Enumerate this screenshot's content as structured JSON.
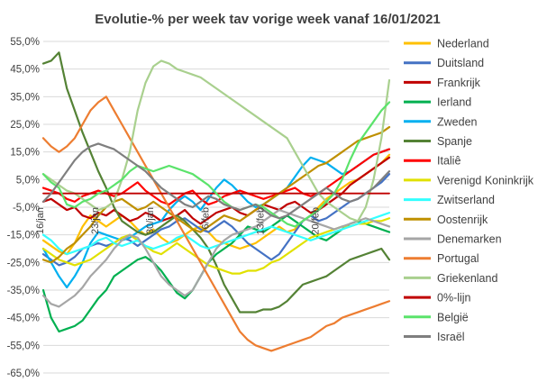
{
  "chart_data": {
    "type": "line",
    "title": "Evolutie-% per week tav vorige week vanaf 16/01/2021",
    "xlabel": "",
    "ylabel": "",
    "ylim": [
      -65,
      55
    ],
    "y_ticks": [
      "55,0%",
      "45,0%",
      "35,0%",
      "25,0%",
      "15,0%",
      "5,0%",
      "-5,0%",
      "-15,0%",
      "-25,0%",
      "-35,0%",
      "-45,0%",
      "-55,0%",
      "-65,0%"
    ],
    "y_tick_values": [
      55,
      45,
      35,
      25,
      15,
      5,
      -5,
      -15,
      -25,
      -35,
      -45,
      -55,
      -65
    ],
    "x_tick_labels": [
      "16/jan",
      "23/jan",
      "30/jan",
      "6/feb",
      "13/feb",
      "20/feb"
    ],
    "x_tick_days": [
      0,
      7,
      14,
      21,
      28,
      35
    ],
    "x_range_days": [
      0,
      44
    ],
    "grid": true,
    "legend_position": "right",
    "series": [
      {
        "name": "Nederland",
        "color": "#FFC000",
        "values": [
          -17,
          -19,
          -21,
          -22,
          -18,
          -12,
          -8,
          -10,
          -12,
          -10,
          -8,
          -10,
          -13,
          -15,
          -13,
          -16,
          -18,
          -17,
          -15,
          -13,
          -12,
          -14,
          -17,
          -18,
          -19,
          -20,
          -19,
          -18,
          -16,
          -14,
          -12,
          -14,
          -13,
          -10,
          -8,
          -5,
          -2,
          0,
          2,
          4,
          5,
          7,
          9,
          11,
          14
        ]
      },
      {
        "name": "Duitsland",
        "color": "#4472C4",
        "values": [
          -22,
          -24,
          -26,
          -25,
          -23,
          -20,
          -19,
          -18,
          -19,
          -18,
          -16,
          -17,
          -19,
          -17,
          -15,
          -13,
          -12,
          -10,
          -9,
          -11,
          -13,
          -14,
          -12,
          -10,
          -12,
          -15,
          -18,
          -20,
          -22,
          -24,
          -22,
          -18,
          -14,
          -10,
          -8,
          -10,
          -9,
          -7,
          -5,
          -3,
          -2,
          0,
          2,
          4,
          7
        ]
      },
      {
        "name": "Frankrijk",
        "color": "#C00000",
        "values": [
          -3,
          -2,
          -4,
          -6,
          -5,
          -8,
          -9,
          -7,
          -8,
          -6,
          -8,
          -10,
          -9,
          -7,
          -8,
          -10,
          -9,
          -8,
          -6,
          -9,
          -11,
          -9,
          -7,
          -6,
          -5,
          -7,
          -8,
          -6,
          -4,
          -5,
          -6,
          -4,
          -3,
          -5,
          -7,
          -6,
          -4,
          -2,
          0,
          3,
          5,
          7,
          9,
          11,
          13
        ]
      },
      {
        "name": "Ierland",
        "color": "#00B050",
        "values": [
          -35,
          -45,
          -50,
          -49,
          -48,
          -46,
          -42,
          -38,
          -35,
          -30,
          -28,
          -26,
          -24,
          -23,
          -25,
          -28,
          -32,
          -36,
          -38,
          -35,
          -30,
          -25,
          -22,
          -20,
          -18,
          -15,
          -12,
          -13,
          -14,
          -12,
          -10,
          -8,
          -10,
          -12,
          -14,
          -16,
          -17,
          -15,
          -13,
          -11,
          -10,
          -11,
          -12,
          -13,
          -14
        ]
      },
      {
        "name": "Zweden",
        "color": "#00B0F0",
        "values": [
          -20,
          -25,
          -30,
          -34,
          -30,
          -25,
          -18,
          -14,
          -15,
          -16,
          -17,
          -16,
          -14,
          -12,
          -11,
          -10,
          -6,
          -3,
          -1,
          -3,
          -6,
          -2,
          2,
          5,
          3,
          0,
          -3,
          -5,
          -4,
          -2,
          0,
          2,
          6,
          10,
          13,
          12,
          11,
          9,
          7,
          8,
          10,
          12,
          14,
          15,
          16
        ]
      },
      {
        "name": "Spanje",
        "color": "#548235",
        "values": [
          47,
          48,
          51,
          38,
          30,
          22,
          15,
          8,
          2,
          -5,
          -10,
          -12,
          -14,
          -15,
          -14,
          -12,
          -10,
          -8,
          -10,
          -13,
          -16,
          -20,
          -26,
          -33,
          -38,
          -43,
          -43,
          -43,
          -42,
          -42,
          -41,
          -39,
          -36,
          -33,
          -32,
          -31,
          -30,
          -28,
          -26,
          -24,
          -23,
          -22,
          -21,
          -20,
          -24
        ]
      },
      {
        "name": "Italiê",
        "color": "#FF0000",
        "values": [
          2,
          1,
          0,
          -2,
          -3,
          -1,
          0,
          1,
          0,
          -1,
          0,
          2,
          4,
          1,
          -1,
          -3,
          -4,
          -2,
          0,
          1,
          -2,
          -4,
          -3,
          -1,
          0,
          1,
          0,
          -1,
          -2,
          -1,
          0,
          1,
          2,
          0,
          -1,
          0,
          2,
          4,
          6,
          8,
          10,
          12,
          14,
          15,
          16
        ]
      },
      {
        "name": "Verenigd Koninkrijk",
        "color": "#E1E100",
        "values": [
          -20,
          -22,
          -24,
          -25,
          -26,
          -25,
          -24,
          -22,
          -20,
          -18,
          -16,
          -15,
          -17,
          -19,
          -21,
          -22,
          -20,
          -18,
          -20,
          -22,
          -24,
          -26,
          -27,
          -28,
          -29,
          -29,
          -28,
          -28,
          -27,
          -25,
          -24,
          -22,
          -20,
          -18,
          -16,
          -15,
          -14,
          -13,
          -12,
          -12,
          -11,
          -11,
          -10,
          -10,
          -9
        ]
      },
      {
        "name": "Zwitserland",
        "color": "#33FFFF",
        "values": [
          -15,
          -17,
          -20,
          -22,
          -21,
          -20,
          -19,
          -17,
          -16,
          -18,
          -19,
          -18,
          -17,
          -19,
          -20,
          -19,
          -18,
          -16,
          -15,
          -17,
          -19,
          -20,
          -19,
          -18,
          -17,
          -16,
          -15,
          -14,
          -13,
          -12,
          -13,
          -14,
          -15,
          -16,
          -17,
          -16,
          -15,
          -14,
          -13,
          -12,
          -11,
          -10,
          -9,
          -8,
          -7
        ]
      },
      {
        "name": "Oostenrijk",
        "color": "#BF9000",
        "values": [
          -24,
          -25,
          -23,
          -20,
          -18,
          -15,
          -12,
          -8,
          -5,
          -3,
          -2,
          -4,
          -6,
          -5,
          -3,
          -5,
          -7,
          -9,
          -11,
          -13,
          -14,
          -12,
          -10,
          -8,
          -9,
          -10,
          -8,
          -6,
          -4,
          -2,
          0,
          2,
          4,
          6,
          8,
          10,
          11,
          13,
          15,
          17,
          19,
          20,
          21,
          22,
          24
        ]
      },
      {
        "name": "Denemarken",
        "color": "#A6A6A6",
        "values": [
          -37,
          -40,
          -41,
          -39,
          -37,
          -34,
          -30,
          -27,
          -24,
          -20,
          -17,
          -15,
          -16,
          -20,
          -25,
          -30,
          -33,
          -35,
          -37,
          -35,
          -30,
          -25,
          -20,
          -17,
          -15,
          -14,
          -13,
          -12,
          -10,
          -8,
          -6,
          -7,
          -8,
          -9,
          -10,
          -11,
          -12,
          -13,
          -12,
          -11,
          -10,
          -9,
          -10,
          -11,
          -12
        ]
      },
      {
        "name": "Portugal",
        "color": "#ED7D31",
        "values": [
          20,
          17,
          15,
          17,
          20,
          25,
          30,
          33,
          35,
          30,
          25,
          20,
          15,
          10,
          5,
          0,
          -5,
          -10,
          -15,
          -20,
          -25,
          -30,
          -35,
          -40,
          -45,
          -50,
          -53,
          -55,
          -56,
          -57,
          -56,
          -55,
          -54,
          -53,
          -52,
          -50,
          -48,
          -47,
          -45,
          -44,
          -43,
          -42,
          -41,
          -40,
          -39
        ]
      },
      {
        "name": "Griekenland",
        "color": "#A9D08E",
        "values": [
          7,
          5,
          3,
          1,
          0,
          -2,
          -4,
          -6,
          -5,
          -3,
          5,
          15,
          30,
          40,
          46,
          48,
          47,
          45,
          44,
          43,
          42,
          40,
          38,
          36,
          34,
          32,
          30,
          28,
          26,
          24,
          22,
          20,
          15,
          10,
          5,
          0,
          -3,
          -5,
          -7,
          -9,
          -10,
          -5,
          5,
          20,
          41
        ]
      },
      {
        "name": "0%-lijn",
        "color": "#C00000",
        "values": [
          0,
          0,
          0,
          0,
          0,
          0,
          0,
          0,
          0,
          0,
          0,
          0,
          0,
          0,
          0,
          0,
          0,
          0,
          0,
          0,
          0,
          0,
          0,
          0,
          0,
          0,
          0,
          0,
          0,
          0,
          0,
          0,
          0,
          0,
          0,
          0,
          0,
          0,
          0,
          0,
          0,
          0,
          0,
          0,
          0
        ]
      },
      {
        "name": "België",
        "color": "#5BE36B",
        "values": [
          7,
          4,
          2,
          -4,
          -5,
          -3,
          -2,
          0,
          1,
          3,
          5,
          8,
          10,
          9,
          8,
          9,
          10,
          9,
          8,
          7,
          5,
          3,
          0,
          -3,
          -5,
          -6,
          -5,
          -4,
          -5,
          -7,
          -9,
          -11,
          -12,
          -10,
          -8,
          -6,
          -3,
          0,
          5,
          12,
          18,
          22,
          26,
          30,
          33
        ]
      },
      {
        "name": "Israël",
        "color": "#7F7F7F",
        "values": [
          -3,
          0,
          4,
          8,
          12,
          15,
          17,
          18,
          17,
          16,
          14,
          12,
          10,
          8,
          5,
          2,
          0,
          -2,
          -4,
          -5,
          -3,
          -1,
          -2,
          -4,
          -5,
          -6,
          -5,
          -4,
          -6,
          -8,
          -9,
          -8,
          -6,
          -4,
          -2,
          0,
          2,
          0,
          -2,
          -3,
          -2,
          0,
          2,
          5,
          8
        ]
      }
    ]
  }
}
